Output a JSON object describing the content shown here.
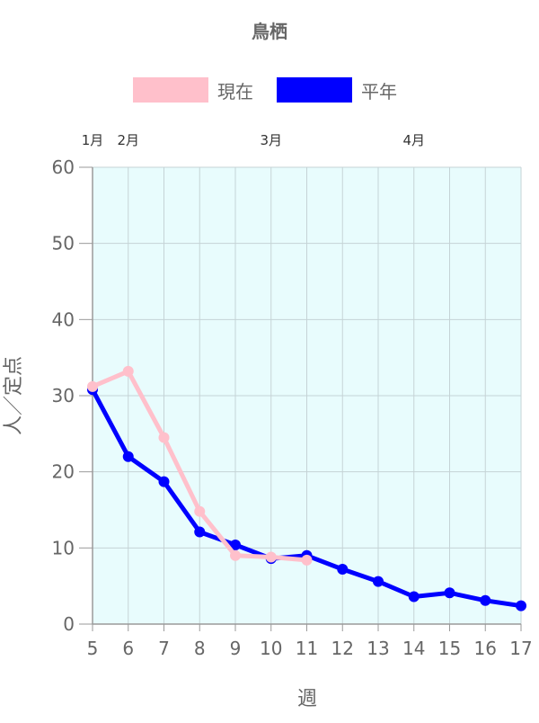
{
  "chart_data": {
    "type": "line",
    "title": "鳥栖",
    "xlabel": "週",
    "ylabel": "人／定点",
    "x": [
      5,
      6,
      7,
      8,
      9,
      10,
      11,
      12,
      13,
      14,
      15,
      16,
      17
    ],
    "xlim": [
      5,
      17
    ],
    "ylim": [
      0,
      60
    ],
    "yticks": [
      0,
      10,
      20,
      30,
      40,
      50,
      60
    ],
    "month_labels": [
      {
        "label": "1月",
        "week": 5
      },
      {
        "label": "2月",
        "week": 6
      },
      {
        "label": "3月",
        "week": 10
      },
      {
        "label": "4月",
        "week": 14
      }
    ],
    "grid": true,
    "legend_position": "top",
    "plot_background": "#e8fcfd",
    "series": [
      {
        "name": "現在",
        "color": "#ffc0cb",
        "x": [
          5,
          6,
          7,
          8,
          9,
          10,
          11
        ],
        "values": [
          31.2,
          33.2,
          24.5,
          14.8,
          9.0,
          8.8,
          8.4
        ]
      },
      {
        "name": "平年",
        "color": "#0000ff",
        "x": [
          5,
          6,
          7,
          8,
          9,
          10,
          11,
          12,
          13,
          14,
          15,
          16,
          17
        ],
        "values": [
          30.8,
          22.0,
          18.7,
          12.1,
          10.4,
          8.6,
          9.0,
          7.2,
          5.6,
          3.6,
          4.1,
          3.1,
          2.4
        ]
      }
    ]
  }
}
